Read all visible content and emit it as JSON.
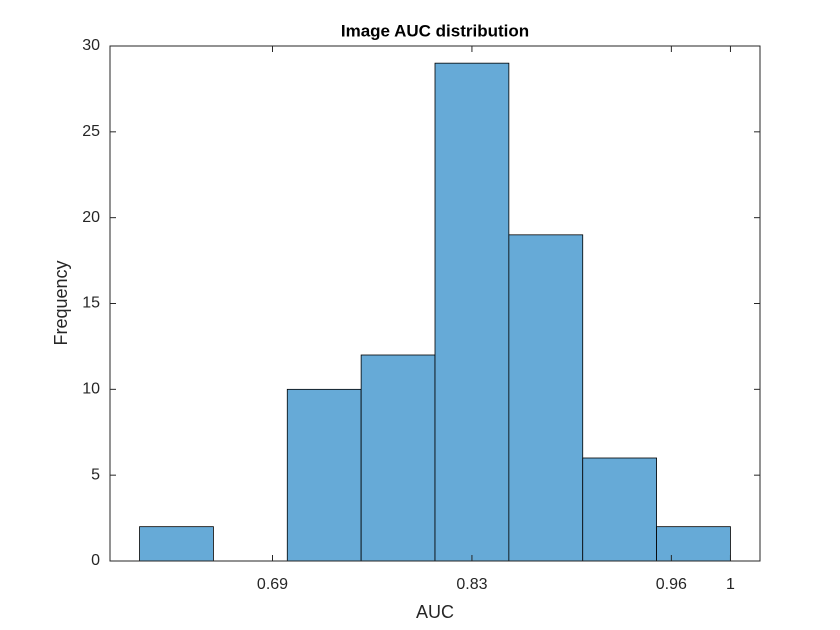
{
  "chart_data": {
    "type": "histogram",
    "title": "Image AUC distribution",
    "x_label": "AUC",
    "y_label": "Frequency",
    "bins": [
      0.6,
      0.65,
      0.7,
      0.75,
      0.8,
      0.85,
      0.9,
      0.95,
      1.0
    ],
    "values": [
      2,
      0,
      10,
      12,
      29,
      19,
      6,
      2
    ],
    "color": "#66aad7",
    "xlim": [
      0.58,
      1.02
    ],
    "xticks": [
      {
        "value": 0.69,
        "label": "0.69"
      },
      {
        "value": 0.825,
        "label": "0.83"
      },
      {
        "value": 0.96,
        "label": "0.96"
      },
      1
    ],
    "ylim": [
      0,
      30
    ],
    "yticks": [
      0,
      5,
      10,
      15,
      20,
      25,
      30
    ],
    "grid": false
  }
}
